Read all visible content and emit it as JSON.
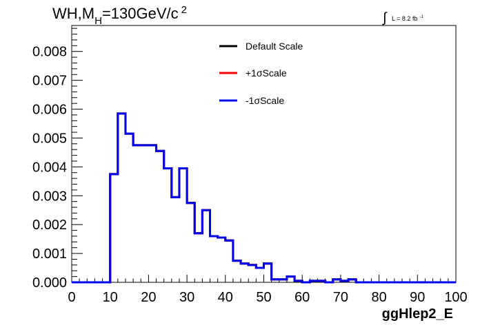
{
  "chart_data": {
    "type": "line",
    "title": "WH,M",
    "title_subscript": "H",
    "title_suffix": "=130GeV/c",
    "title_superscript": "2",
    "luminosity": {
      "prefix": "L = 8.2 fb",
      "superscript": "-1"
    },
    "xlabel": "ggHlep2_E",
    "ylabel": "",
    "xlim": [
      0,
      100
    ],
    "ylim": [
      0,
      0.0089
    ],
    "x_ticks": [
      "0",
      "10",
      "20",
      "30",
      "40",
      "50",
      "60",
      "70",
      "80",
      "90",
      "100"
    ],
    "y_ticks": [
      "0.000",
      "0.001",
      "0.002",
      "0.003",
      "0.004",
      "0.005",
      "0.006",
      "0.007",
      "0.008"
    ],
    "bin_width": 2,
    "bin_edges_start": 0,
    "legend_position": "top-center",
    "series": [
      {
        "name": "Default Scale",
        "color": "#000000",
        "values": [
          0,
          0,
          0,
          0,
          0,
          0.00375,
          0.00585,
          0.00515,
          0.00475,
          0.00475,
          0.00475,
          0.00455,
          0.00395,
          0.00295,
          0.00395,
          0.00275,
          0.0017,
          0.0025,
          0.0016,
          0.00155,
          0.00145,
          0.00075,
          0.00065,
          0.0006,
          0.0005,
          0.00065,
          0.0001,
          0.0001,
          0.0002,
          5e-05,
          0.0,
          5e-05,
          5e-05,
          0.0,
          0.0001,
          5e-05,
          0.0001,
          0,
          0,
          0,
          0,
          0,
          0,
          0,
          0,
          0,
          0,
          0,
          0,
          0
        ]
      },
      {
        "name": "+1σScale",
        "color": "#ff0000",
        "values": [
          0,
          0,
          0,
          0,
          0,
          0.00375,
          0.00585,
          0.00515,
          0.00475,
          0.00475,
          0.00475,
          0.00455,
          0.00395,
          0.00295,
          0.00395,
          0.00275,
          0.0017,
          0.0025,
          0.0016,
          0.00155,
          0.00145,
          0.00075,
          0.00065,
          0.0006,
          0.0005,
          0.00065,
          0.0001,
          0.0001,
          0.0002,
          5e-05,
          0.0,
          5e-05,
          5e-05,
          0.0,
          0.0001,
          5e-05,
          0.0001,
          0,
          0,
          0,
          0,
          0,
          0,
          0,
          0,
          0,
          0,
          0,
          0,
          0
        ]
      },
      {
        "name": "-1σScale",
        "color": "#0000ee",
        "values": [
          0,
          0,
          0,
          0,
          0,
          0.00375,
          0.00585,
          0.00515,
          0.00475,
          0.00475,
          0.00475,
          0.00455,
          0.00395,
          0.00295,
          0.00395,
          0.00275,
          0.0017,
          0.0025,
          0.0016,
          0.00155,
          0.00145,
          0.00075,
          0.00065,
          0.0006,
          0.0005,
          0.00065,
          0.0001,
          0.0001,
          0.0002,
          5e-05,
          0.0,
          5e-05,
          5e-05,
          0.0,
          0.0001,
          5e-05,
          0.0001,
          0,
          0,
          0,
          0,
          0,
          0,
          0,
          0,
          0,
          0,
          0,
          0,
          0
        ]
      }
    ]
  }
}
